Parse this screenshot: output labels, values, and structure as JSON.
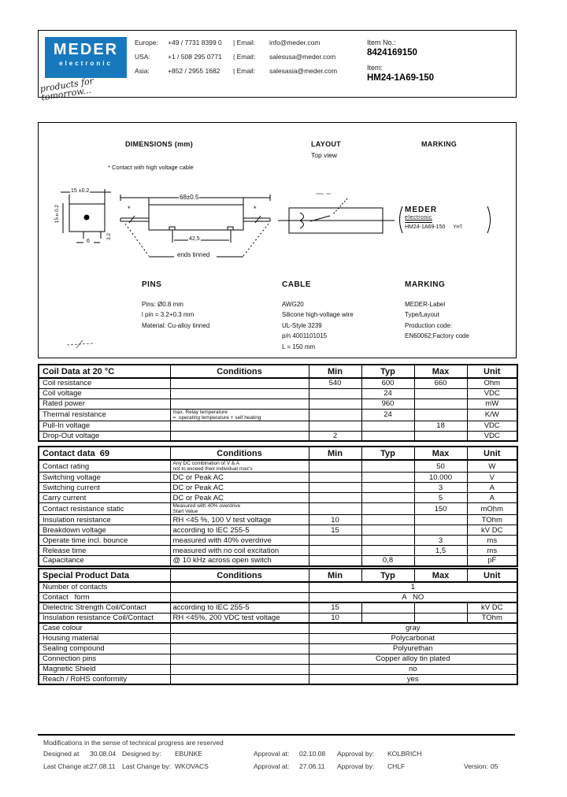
{
  "header": {
    "logo": {
      "line1": "MEDER",
      "line2": "electronic",
      "tagline": "products for tomorrow...",
      "brand_color": "#1878be"
    },
    "contacts": [
      {
        "region": "Europe:",
        "phone": "+49 / 7731 8399 0",
        "email_label": "| Email:",
        "email": "info@meder.com"
      },
      {
        "region": "USA:",
        "phone": "+1 / 508 295 0771",
        "email_label": "| Email:",
        "email": "salesusa@meder.com"
      },
      {
        "region": "Asia:",
        "phone": "+852 / 2955 1682",
        "email_label": "| Email:",
        "email": "salesasia@meder.com"
      }
    ],
    "item_no_label": "Item No.:",
    "item_no": "8424169150",
    "item_label": "Item:",
    "item": "HM24-1A69-150"
  },
  "drawing": {
    "dimensions_title": "DIMENSIONS (mm)",
    "note": "*  Contact with high voltage cable",
    "layout_title": "LAYOUT",
    "layout_subtitle": "Top view",
    "marking_title": "MARKING",
    "dim_top_side": "15 ±0.2",
    "dim_left_side": "15±0.2",
    "dim_bottom": "6",
    "dim_pin_len": "3.2",
    "dim_body": "68±0.5",
    "dim_pin_spacing": "42,5",
    "wire_mark": "*",
    "ends_tinned": "ends tinned",
    "marking_box": {
      "line1": "MEDER",
      "line2": "electronic",
      "line3": "HM24-1A69-150",
      "code": "YHT"
    },
    "pins": {
      "title": "PINS",
      "lines": [
        "Pins:  Ø0.8 mm",
        "l pin = 3.2+0.3 mm",
        "Material: Cu-alloy tinned"
      ]
    },
    "cable": {
      "title": "CABLE",
      "lines": [
        "AWG20",
        "Silicone high-voltage wire",
        "UL-Style 3239",
        "p/n 4001101015",
        "L = 150 mm"
      ]
    },
    "marking": {
      "title": "MARKING",
      "lines": [
        "MEDER-Label",
        "Type/Layout",
        "Production code:",
        "EN60062;Factory code"
      ]
    }
  },
  "tables": [
    {
      "title": "Coil Data at 20 °C",
      "headers": [
        "Conditions",
        "Min",
        "Typ",
        "Max",
        "Unit"
      ],
      "rows": [
        {
          "label": "Coil resistance",
          "min": "540",
          "typ": "600",
          "max": "660",
          "unit": "Ohm"
        },
        {
          "label": "Coil voltage",
          "typ": "24",
          "unit": "VDC"
        },
        {
          "label": "Rated power",
          "typ": "960",
          "unit": "mW"
        },
        {
          "label": "Thermal resistance",
          "cond": "max. Relay temperature",
          "cond2": "=  operating temperature + self heating",
          "typ": "24",
          "unit": "K/W"
        },
        {
          "label": "Pull-In voltage",
          "max": "18",
          "unit": "VDC"
        },
        {
          "label": "Drop-Out voltage",
          "min": "2",
          "unit": "VDC"
        }
      ]
    },
    {
      "title": "Contact data  69",
      "headers": [
        "Conditions",
        "Min",
        "Typ",
        "Max",
        "Unit"
      ],
      "rows": [
        {
          "label": "Contact rating",
          "cond": "Any DC combination of V & A",
          "cond2": "not to exceed their individual max's",
          "max": "50",
          "unit": "W"
        },
        {
          "label": "Switching voltage",
          "cond": "DC or Peak AC",
          "max": "10.000",
          "unit": "V"
        },
        {
          "label": "Switching current",
          "cond": "DC or Peak AC",
          "max": "3",
          "unit": "A"
        },
        {
          "label": "Carry current",
          "cond": "DC or Peak AC",
          "max": "5",
          "unit": "A"
        },
        {
          "label": "Contact resistance static",
          "cond": "Measured with 40% overdrive",
          "cond2": "Start Value",
          "max": "150",
          "unit": "mOhm"
        },
        {
          "label": "Insulation resistance",
          "cond": "RH <45 %, 100 V test voltage",
          "min": "10",
          "unit": "TOhm"
        },
        {
          "label": "Breakdown voltage",
          "cond": "according to IEC 255-5",
          "min": "15",
          "unit": "kV DC"
        },
        {
          "label": "Operate time incl. bounce",
          "cond": "measured with 40% overdrive",
          "max": "3",
          "unit": "ms"
        },
        {
          "label": "Release time",
          "cond": "measured with no coil excitation",
          "max": "1,5",
          "unit": "ms"
        },
        {
          "label": "Capacitance",
          "cond": "@ 10 kHz across open switch",
          "typ": "0,8",
          "unit": "pF"
        }
      ]
    },
    {
      "title": "Special Product Data",
      "headers": [
        "Conditions",
        "Min",
        "Typ",
        "Max",
        "Unit"
      ],
      "rows": [
        {
          "label": "Number of contacts",
          "span": "1"
        },
        {
          "label": "Contact   form",
          "span": "A   NO",
          "rule": true
        },
        {
          "label": "Dielectric Strength Coil/Contact",
          "cond": "according to IEC 255-5",
          "min": "15",
          "unit": "kV DC"
        },
        {
          "label": "Insulation resistance Coil/Contact",
          "cond": "RH <45%, 200 VDC test voltage",
          "min": "10",
          "unit": "TOhm",
          "rule": true
        },
        {
          "label": "Case colour",
          "span": "gray"
        },
        {
          "label": "Housing material",
          "span": "Polycarbonat"
        },
        {
          "label": "Sealing compound",
          "span": "Polyurethan"
        },
        {
          "label": "Connection pins",
          "span": "Copper alloy tin plated"
        },
        {
          "label": "Magnetic Shield",
          "span": "no"
        },
        {
          "label": "Reach / RoHS conformity",
          "span": "yes"
        }
      ]
    }
  ],
  "footer": {
    "note": "Modifications in the sense of technical progress are reserved",
    "fields": [
      {
        "label": "Designed at",
        "value": "30.08.04"
      },
      {
        "label": "Designed by:",
        "value": "EBUNKE"
      },
      {
        "label": "Approval at:",
        "value": "02.10.08"
      },
      {
        "label": "Approval by:",
        "value": "KOLBRICH"
      }
    ],
    "fields2": [
      {
        "label": "Last Change at:",
        "value": "27.08.11"
      },
      {
        "label": "Last Change by:",
        "value": "WKOVACS"
      },
      {
        "label": "Approval at:",
        "value": "27.06.11"
      },
      {
        "label": "Approval by:",
        "value": "CHLF"
      },
      {
        "label": "Version:",
        "value": "05"
      }
    ]
  }
}
